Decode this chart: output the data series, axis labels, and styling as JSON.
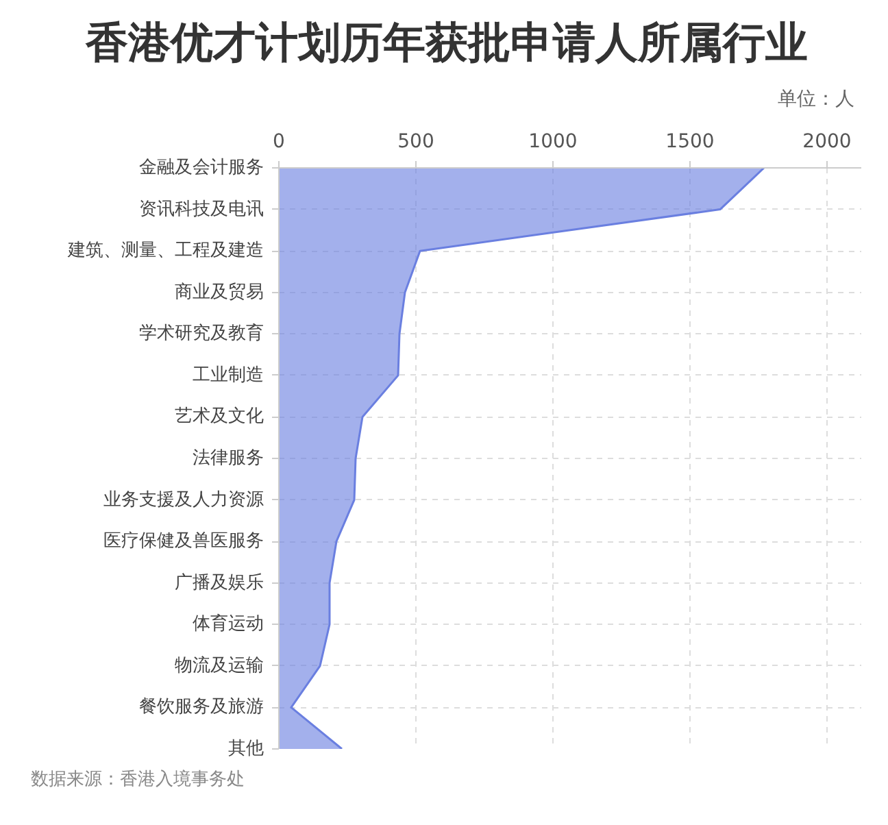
{
  "chart_data": {
    "type": "area",
    "orientation": "horizontal",
    "title": "香港优才计划历年获批申请人所属行业",
    "xlabel": "单位：人",
    "annotations": [
      "数据来源：香港入境事务处"
    ],
    "categories": [
      "金融及会计服务",
      "资讯科技及电讯",
      "建筑、测量、工程及建造",
      "商业及贸易",
      "学术研究及教育",
      "工业制造",
      "艺术及文化",
      "法律服务",
      "业务支援及人力资源",
      "医疗保健及兽医服务",
      "广播及娱乐",
      "体育运动",
      "物流及运输",
      "餐饮服务及旅游",
      "其他"
    ],
    "values": [
      1770,
      1610,
      515,
      460,
      440,
      435,
      305,
      280,
      275,
      210,
      185,
      185,
      150,
      45,
      230
    ],
    "color": "#6a7fe0",
    "xlim": [
      0,
      2125
    ],
    "xticks": [
      0,
      500,
      1000,
      1500,
      2000
    ],
    "grid": true
  }
}
